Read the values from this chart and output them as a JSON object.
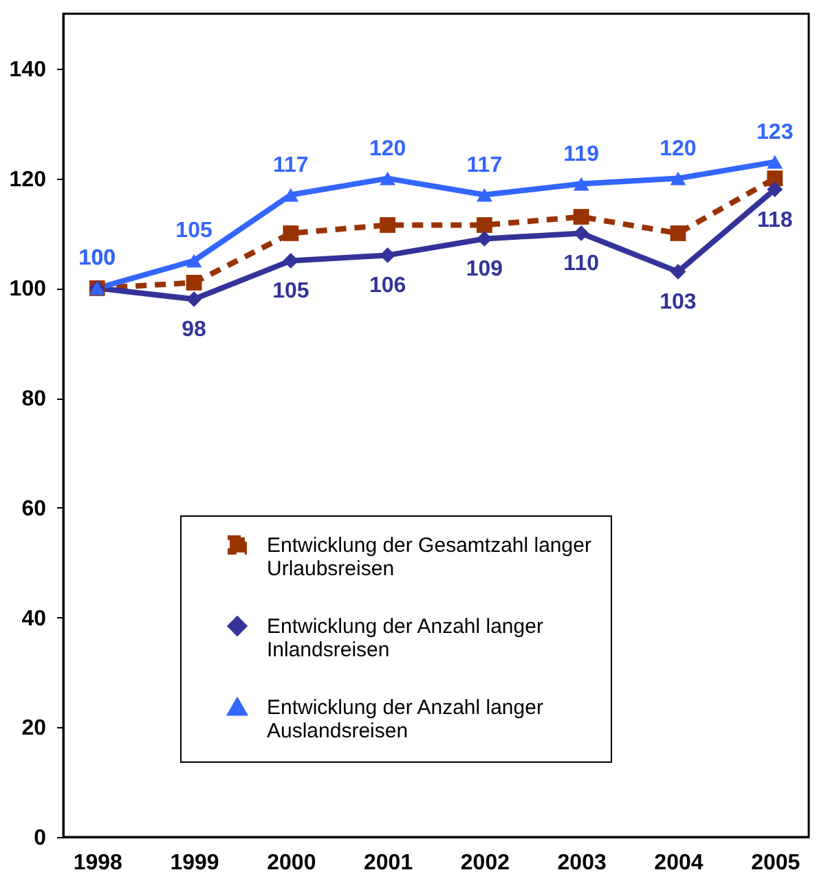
{
  "chart_data": {
    "type": "line",
    "categories": [
      "1998",
      "1999",
      "2000",
      "2001",
      "2002",
      "2003",
      "2004",
      "2005"
    ],
    "ylim": [
      0,
      150
    ],
    "yticks": [
      0,
      20,
      40,
      60,
      80,
      100,
      120,
      140
    ],
    "grid": false,
    "legend": "bottom",
    "series": [
      {
        "name": "Entwicklung der Gesamtzahl langer Urlaubsreisen",
        "color": "#993300",
        "marker": "square",
        "line_style": "dashed",
        "values": [
          100,
          101,
          110,
          111.5,
          111.5,
          113,
          110,
          120
        ]
      },
      {
        "name": "Entwicklung der Anzahl langer Inlandsreisen",
        "color": "#333399",
        "marker": "diamond",
        "line_style": "solid",
        "values": [
          100,
          98,
          105,
          106,
          109,
          110,
          103,
          118
        ],
        "value_labels": [
          "100",
          "98",
          "105",
          "106",
          "109",
          "110",
          "103",
          "118"
        ]
      },
      {
        "name": "Entwicklung der Anzahl langer Auslandsreisen",
        "color": "#3366ff",
        "marker": "triangle",
        "line_style": "solid",
        "values": [
          100,
          105,
          117,
          120,
          117,
          119,
          120,
          123
        ],
        "value_labels": [
          "100",
          "105",
          "117",
          "120",
          "117",
          "119",
          "120",
          "123"
        ]
      }
    ]
  }
}
